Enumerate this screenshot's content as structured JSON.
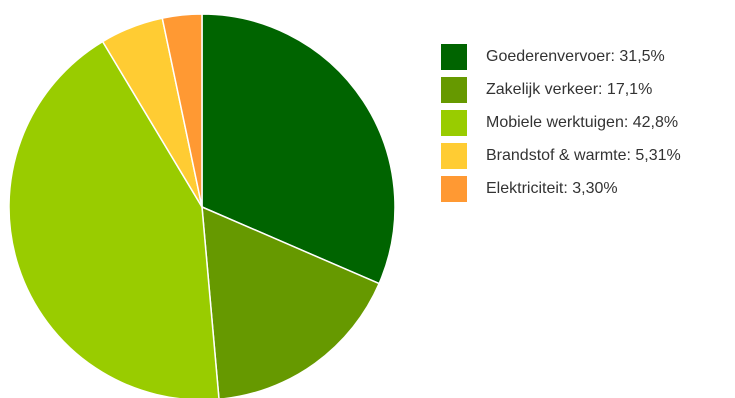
{
  "chart_data": {
    "type": "pie",
    "title": "",
    "series": [
      {
        "values": [
          31.5,
          17.1,
          42.8,
          5.31,
          3.3
        ]
      }
    ],
    "slices": [
      {
        "label": "Goederenvervoer: 31,5%",
        "value": 31.5,
        "color": "#006400"
      },
      {
        "label": "Zakelijk verkeer: 17,1%",
        "value": 17.1,
        "color": "#669900"
      },
      {
        "label": "Mobiele werktuigen: 42,8%",
        "value": 42.8,
        "color": "#99cc00"
      },
      {
        "label": "Brandstof & warmte: 5,31%",
        "value": 5.31,
        "color": "#ffcc33"
      },
      {
        "label": "Elektriciteit: 3,30%",
        "value": 3.3,
        "color": "#ff9933"
      }
    ],
    "legend_position": "right",
    "grid": false
  }
}
